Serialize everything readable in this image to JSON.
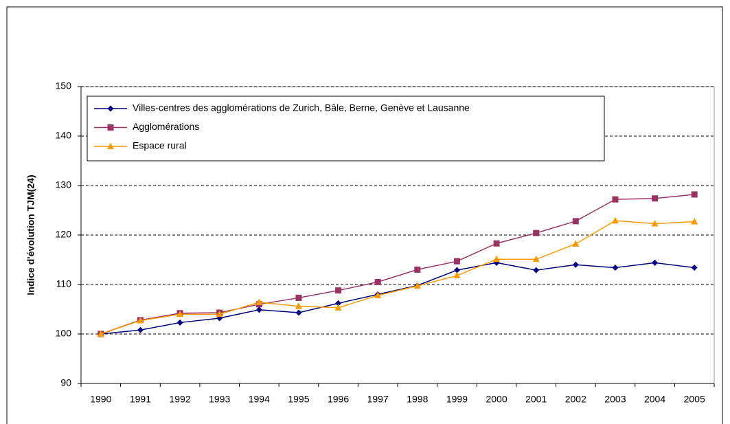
{
  "chart_data": {
    "type": "line",
    "y_label": "Indice d'évolution TJM(24)",
    "categories": [
      "1990",
      "1991",
      "1992",
      "1993",
      "1994",
      "1995",
      "1996",
      "1997",
      "1998",
      "1999",
      "2000",
      "2001",
      "2002",
      "2003",
      "2004",
      "2005"
    ],
    "series": [
      {
        "name": "Villes-centres des agglomérations de Zurich, Bâle, Berne, Genève et Lausanne",
        "color": "#000080",
        "marker": "diamond",
        "values": [
          100,
          100.8,
          102.3,
          103.2,
          104.9,
          104.3,
          106.2,
          108.0,
          109.8,
          112.9,
          114.4,
          112.9,
          114.0,
          113.4,
          114.4,
          113.4
        ]
      },
      {
        "name": "Agglomérations",
        "color": "#993366",
        "marker": "square",
        "values": [
          100,
          102.8,
          104.2,
          104.3,
          106.0,
          107.3,
          108.8,
          110.5,
          113.0,
          114.7,
          118.3,
          120.4,
          122.8,
          127.2,
          127.4,
          128.2
        ]
      },
      {
        "name": "Espace rural",
        "color": "#ff9900",
        "marker": "triangle",
        "values": [
          100,
          102.7,
          104.0,
          104.0,
          106.4,
          105.6,
          105.3,
          107.8,
          109.7,
          111.8,
          115.1,
          115.1,
          118.2,
          122.9,
          122.3,
          122.7
        ]
      }
    ],
    "ylim": [
      90,
      150
    ],
    "yticks": [
      90,
      100,
      110,
      120,
      130,
      140,
      150
    ],
    "grid": true,
    "legend": "top-left"
  }
}
